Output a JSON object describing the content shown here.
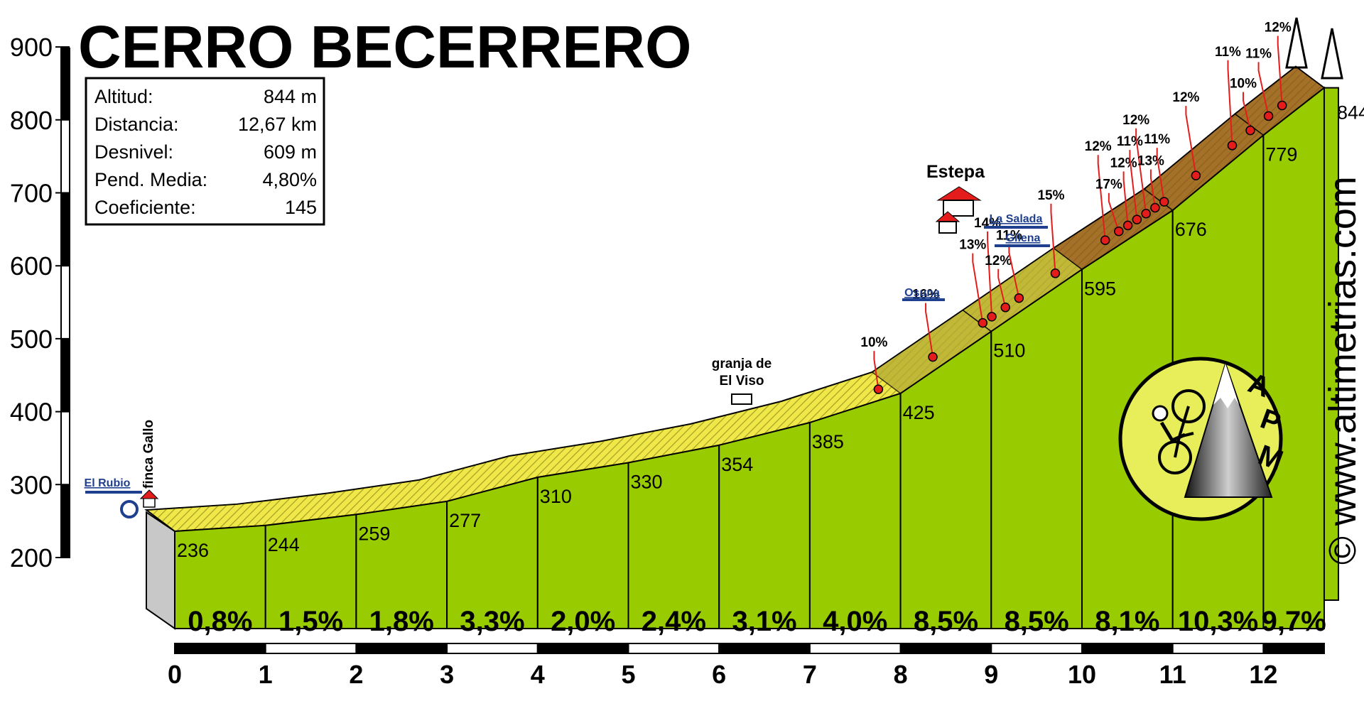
{
  "chart_data": {
    "type": "area",
    "title": "CERRO BECERRERO",
    "info": [
      {
        "label": "Altitud:",
        "value": "844 m"
      },
      {
        "label": "Distancia:",
        "value": "12,67 km"
      },
      {
        "label": "Desnivel:",
        "value": "609 m"
      },
      {
        "label": "Pend. Media:",
        "value": "4,80%"
      },
      {
        "label": "Coeficiente:",
        "value": "145"
      }
    ],
    "yticks": [
      "200",
      "300",
      "400",
      "500",
      "600",
      "700",
      "800",
      "900"
    ],
    "ylim": [
      200,
      900
    ],
    "xticks": [
      "0",
      "1",
      "2",
      "3",
      "4",
      "5",
      "6",
      "7",
      "8",
      "9",
      "10",
      "11",
      "12"
    ],
    "xlim": [
      0,
      12.67
    ],
    "profile": [
      {
        "km": 0,
        "elev": 236,
        "label": "236"
      },
      {
        "km": 1,
        "elev": 244,
        "label": "244"
      },
      {
        "km": 2,
        "elev": 259,
        "label": "259"
      },
      {
        "km": 3,
        "elev": 277,
        "label": "277"
      },
      {
        "km": 4,
        "elev": 310,
        "label": "310"
      },
      {
        "km": 5,
        "elev": 330,
        "label": "330"
      },
      {
        "km": 6,
        "elev": 354,
        "label": "354"
      },
      {
        "km": 7,
        "elev": 385,
        "label": "385"
      },
      {
        "km": 8,
        "elev": 425,
        "label": "425"
      },
      {
        "km": 9,
        "elev": 510,
        "label": "510"
      },
      {
        "km": 10,
        "elev": 595,
        "label": "595"
      },
      {
        "km": 11,
        "elev": 676,
        "label": "676"
      },
      {
        "km": 12,
        "elev": 779,
        "label": "779"
      },
      {
        "km": 12.67,
        "elev": 844,
        "label": "844"
      }
    ],
    "gradients": [
      "0,8%",
      "1,5%",
      "1,8%",
      "3,3%",
      "2,0%",
      "2,4%",
      "3,1%",
      "4,0%",
      "8,5%",
      "8,5%",
      "8,1%",
      "10,3%",
      "9,7%"
    ],
    "ramps": [
      {
        "km": 7.85,
        "label": "10%"
      },
      {
        "km": 8.45,
        "label": "16%"
      },
      {
        "km": 9.0,
        "label": "13%"
      },
      {
        "km": 9.1,
        "label": "14%"
      },
      {
        "km": 9.25,
        "label": "12%"
      },
      {
        "km": 9.4,
        "label": "11%"
      },
      {
        "km": 9.8,
        "label": "15%"
      },
      {
        "km": 10.35,
        "label": "12%"
      },
      {
        "km": 10.5,
        "label": "17%"
      },
      {
        "km": 10.6,
        "label": "12%"
      },
      {
        "km": 10.7,
        "label": "11%"
      },
      {
        "km": 10.8,
        "label": "12%"
      },
      {
        "km": 10.9,
        "label": "13%"
      },
      {
        "km": 11.0,
        "label": "11%"
      },
      {
        "km": 11.35,
        "label": "12%"
      },
      {
        "km": 11.75,
        "label": "11%"
      },
      {
        "km": 11.95,
        "label": "10%"
      },
      {
        "km": 12.15,
        "label": "11%"
      },
      {
        "km": 12.3,
        "label": "12%"
      }
    ],
    "places": {
      "start_sign": "El Rubio",
      "start_place": "finca Gallo",
      "farm": "granja de\nEl Viso",
      "town": "Estepa",
      "sign_osuna": "Osuna",
      "sign_la_salada": "La Salada",
      "sign_gilena": "Gilena"
    },
    "logo_text": "APM",
    "copyright": "© www.altimetrias.com",
    "colors": {
      "fill_green": "#99cc00",
      "band_yellow": "#f0e848",
      "band_olive": "#b3a933",
      "band_brown": "#8a4a1c",
      "ramp_dot": "#e51c1c",
      "sign_blue": "#1f3f8f"
    }
  }
}
